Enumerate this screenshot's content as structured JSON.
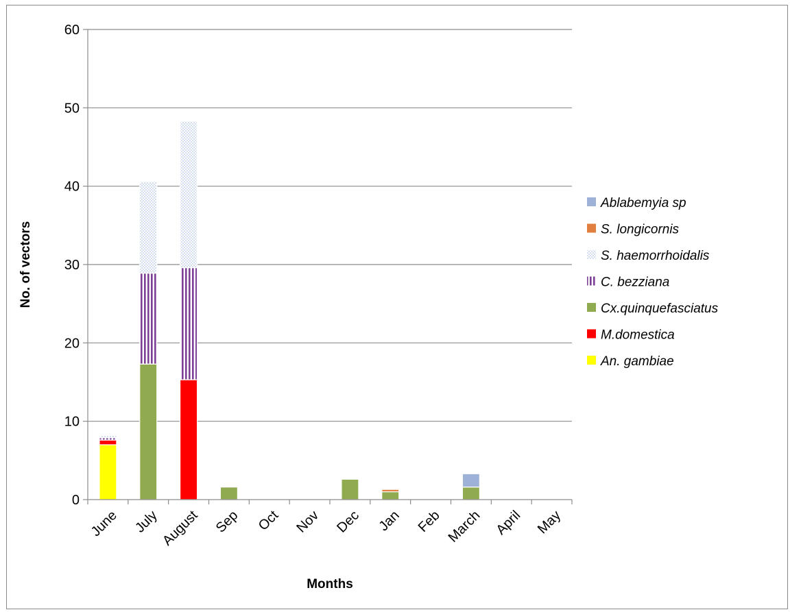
{
  "chart_data": {
    "type": "bar",
    "stacked": true,
    "title": "",
    "xlabel": "Months",
    "ylabel": "No. of vectors",
    "ylim": [
      0,
      60
    ],
    "yticks": [
      0,
      10,
      20,
      30,
      40,
      50,
      60
    ],
    "grid": true,
    "legend_position": "right",
    "categories": [
      "June",
      "July",
      "August",
      "Sep",
      "Oct",
      "Nov",
      "Dec",
      "Jan",
      "Feb",
      "March",
      "April",
      "May"
    ],
    "series": [
      {
        "name": "An. gambiae",
        "color": "#ffff00",
        "pattern": "solid",
        "values": [
          7,
          0,
          0,
          0,
          0,
          0,
          0,
          0,
          0,
          0,
          0,
          0
        ]
      },
      {
        "name": "M.domestica",
        "color": "#ff0000",
        "pattern": "solid",
        "values": [
          0.6,
          0,
          15.3,
          0,
          0,
          0,
          0,
          0,
          0,
          0,
          0,
          0
        ]
      },
      {
        "name": "Cx.quinquefasciatus",
        "color": "#8faa4f",
        "pattern": "solid",
        "values": [
          0,
          17.3,
          0,
          1.6,
          0,
          0,
          2.6,
          1.0,
          0,
          1.6,
          0,
          0
        ]
      },
      {
        "name": "C. bezziana",
        "color": "#7b3f96",
        "pattern": "vertical-stripes",
        "values": [
          0.3,
          11.6,
          14.3,
          0,
          0,
          0,
          0,
          0,
          0,
          0,
          0,
          0
        ]
      },
      {
        "name": "S. haemorrhoidalis",
        "color": "#c9daf0",
        "pattern": "dots",
        "values": [
          0.3,
          11.7,
          18.7,
          0,
          0,
          0,
          0,
          0,
          0,
          0,
          0,
          0
        ]
      },
      {
        "name": "S. longicornis",
        "color": "#e07f3f",
        "pattern": "solid",
        "values": [
          0,
          0,
          0,
          0,
          0,
          0,
          0,
          0.3,
          0,
          0,
          0,
          0
        ]
      },
      {
        "name": "Ablabemyia sp",
        "color": "#9db2d6",
        "pattern": "solid",
        "values": [
          0,
          0,
          0,
          0,
          0,
          0,
          0,
          0,
          0,
          1.7,
          0,
          0
        ]
      }
    ]
  }
}
